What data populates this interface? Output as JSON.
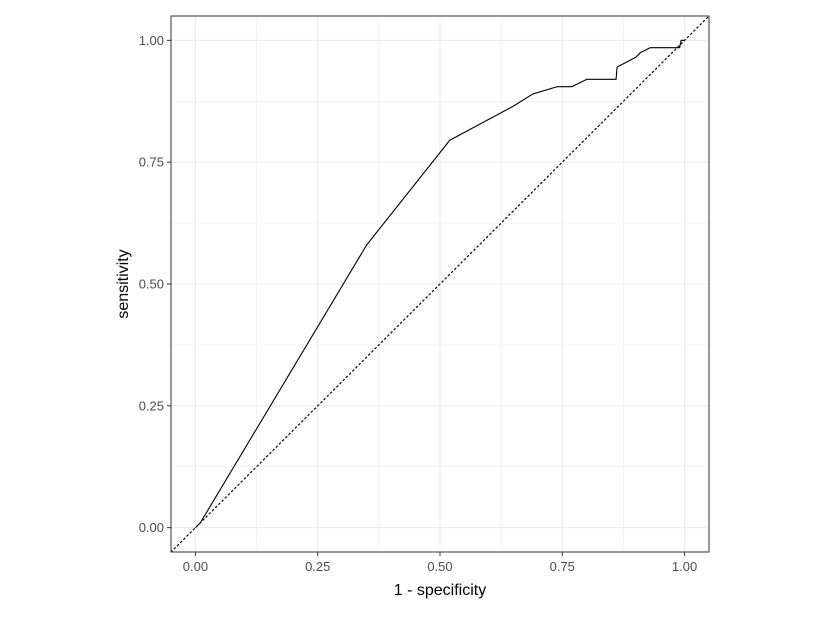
{
  "chart_data": {
    "type": "line",
    "title": "",
    "xlabel": "1 - specificity",
    "ylabel": "sensitivity",
    "xlim": [
      -0.05,
      1.05
    ],
    "ylim": [
      -0.05,
      1.05
    ],
    "x_ticks": [
      0.0,
      0.25,
      0.5,
      0.75,
      1.0
    ],
    "y_ticks": [
      0.0,
      0.25,
      0.5,
      0.75,
      1.0
    ],
    "x_tick_labels": [
      "0.00",
      "0.25",
      "0.50",
      "0.75",
      "1.00"
    ],
    "y_tick_labels": [
      "0.00",
      "0.25",
      "0.50",
      "0.75",
      "1.00"
    ],
    "grid": true,
    "reference_line": {
      "style": "dotted",
      "from": [
        -0.05,
        -0.05
      ],
      "to": [
        1.05,
        1.05
      ]
    },
    "colors": {
      "line": "#000000",
      "grid": "#ebebeb",
      "border": "#333333"
    },
    "series": [
      {
        "x": [
          0.0,
          0.01,
          0.35,
          0.52,
          0.65,
          0.69,
          0.74,
          0.77,
          0.8,
          0.86,
          0.862,
          0.89,
          0.9,
          0.91,
          0.92,
          0.93,
          0.99,
          0.993,
          1.0
        ],
        "y": [
          0.0,
          0.01,
          0.58,
          0.795,
          0.865,
          0.89,
          0.905,
          0.905,
          0.92,
          0.92,
          0.945,
          0.96,
          0.965,
          0.975,
          0.98,
          0.985,
          0.985,
          1.0,
          1.0
        ]
      }
    ]
  }
}
